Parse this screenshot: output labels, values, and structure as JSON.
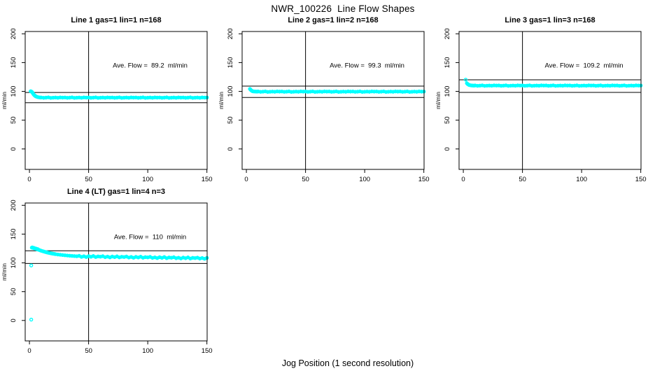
{
  "figure": {
    "title": "NWR_100226  Line Flow Shapes",
    "xlabel": "Jog Position (1 second resolution)",
    "point_color": "#00ffff",
    "axis_color": "#000000",
    "background": "#ffffff"
  },
  "chart_data": [
    {
      "type": "scatter",
      "title": "Line 1 gas=1 lin=1 n=168",
      "annotation": "Ave. Flow =  89.2  ml/min",
      "ave_flow": 89.2,
      "ylabel": "ml/min",
      "x_ticks": [
        0,
        50,
        100,
        150
      ],
      "y_ticks": [
        0,
        50,
        100,
        150,
        200
      ],
      "xlim": [
        -3.6,
        150.2
      ],
      "ylim": [
        -35.5,
        204
      ],
      "vline_x": 50,
      "hlines": [
        98.1,
        80.3
      ],
      "annotation_pos": [
        102,
        145
      ],
      "points": [
        [
          1,
          100.2
        ],
        [
          1.5,
          99.9
        ],
        [
          2,
          99.2
        ],
        [
          2.5,
          98.0
        ],
        [
          3,
          96.3
        ],
        [
          3.5,
          94.9
        ],
        [
          4,
          93.7
        ],
        [
          4.5,
          92.7
        ],
        [
          5,
          91.9
        ],
        [
          5.5,
          91.3
        ],
        [
          6,
          90.8
        ],
        [
          7,
          90.1
        ],
        [
          8,
          89.7
        ],
        [
          9,
          89.4
        ],
        [
          10,
          89.4
        ],
        [
          12,
          88.8
        ],
        [
          14,
          89.1
        ],
        [
          16,
          89.6
        ],
        [
          18,
          88.7
        ],
        [
          20,
          89.0
        ],
        [
          22,
          89.3
        ],
        [
          24,
          88.9
        ],
        [
          26,
          89.5
        ],
        [
          28,
          89.2
        ],
        [
          30,
          89.4
        ],
        [
          32,
          88.8
        ],
        [
          34,
          89.1
        ],
        [
          36,
          89.6
        ],
        [
          38,
          88.7
        ],
        [
          40,
          89.0
        ],
        [
          42,
          89.3
        ],
        [
          44,
          88.9
        ],
        [
          46,
          89.5
        ],
        [
          48,
          89.2
        ],
        [
          50,
          89.4
        ],
        [
          52,
          88.8
        ],
        [
          54,
          89.1
        ],
        [
          56,
          89.6
        ],
        [
          58,
          88.7
        ],
        [
          60,
          89.0
        ],
        [
          62,
          89.3
        ],
        [
          64,
          88.9
        ],
        [
          66,
          89.5
        ],
        [
          68,
          89.2
        ],
        [
          70,
          89.4
        ],
        [
          72,
          88.8
        ],
        [
          74,
          89.1
        ],
        [
          76,
          89.6
        ],
        [
          78,
          88.7
        ],
        [
          80,
          89.0
        ],
        [
          82,
          89.3
        ],
        [
          84,
          88.9
        ],
        [
          86,
          89.5
        ],
        [
          88,
          89.2
        ],
        [
          90,
          89.4
        ],
        [
          92,
          88.8
        ],
        [
          94,
          89.1
        ],
        [
          96,
          89.6
        ],
        [
          98,
          88.7
        ],
        [
          100,
          89.0
        ],
        [
          102,
          89.3
        ],
        [
          104,
          88.9
        ],
        [
          106,
          89.5
        ],
        [
          108,
          89.2
        ],
        [
          110,
          89.4
        ],
        [
          112,
          88.8
        ],
        [
          114,
          89.1
        ],
        [
          116,
          89.6
        ],
        [
          118,
          88.7
        ],
        [
          120,
          89.0
        ],
        [
          122,
          89.3
        ],
        [
          124,
          88.9
        ],
        [
          126,
          89.5
        ],
        [
          128,
          89.2
        ],
        [
          130,
          89.4
        ],
        [
          132,
          88.8
        ],
        [
          134,
          89.1
        ],
        [
          136,
          89.6
        ],
        [
          138,
          88.7
        ],
        [
          140,
          89.0
        ],
        [
          142,
          89.3
        ],
        [
          144,
          88.9
        ],
        [
          146,
          89.5
        ],
        [
          148,
          89.2
        ],
        [
          150,
          89.3
        ]
      ]
    },
    {
      "type": "scatter",
      "title": "Line 2 gas=1 lin=2 n=168",
      "annotation": "Ave. Flow =  99.3  ml/min",
      "ave_flow": 99.3,
      "ylabel": "ml/min",
      "x_ticks": [
        0,
        50,
        100,
        150
      ],
      "y_ticks": [
        0,
        50,
        100,
        150,
        200
      ],
      "xlim": [
        -3.6,
        150.2
      ],
      "ylim": [
        -35.5,
        204
      ],
      "vline_x": 50,
      "hlines": [
        109.2,
        89.4
      ],
      "annotation_pos": [
        102,
        145
      ],
      "points": [
        [
          3,
          104.2
        ],
        [
          3.5,
          103.1
        ],
        [
          4,
          102.0
        ],
        [
          4.5,
          101.1
        ],
        [
          5,
          100.5
        ],
        [
          5.5,
          100.2
        ],
        [
          6,
          100.0
        ],
        [
          7,
          99.8
        ],
        [
          8,
          99.7
        ],
        [
          9,
          99.6
        ],
        [
          10,
          99.8
        ],
        [
          12,
          99.2
        ],
        [
          14,
          99.5
        ],
        [
          16,
          100.0
        ],
        [
          18,
          99.1
        ],
        [
          20,
          99.4
        ],
        [
          22,
          99.7
        ],
        [
          24,
          99.3
        ],
        [
          26,
          99.9
        ],
        [
          28,
          99.6
        ],
        [
          30,
          99.8
        ],
        [
          32,
          99.2
        ],
        [
          34,
          99.5
        ],
        [
          36,
          100.0
        ],
        [
          38,
          99.1
        ],
        [
          40,
          99.4
        ],
        [
          42,
          99.7
        ],
        [
          44,
          99.3
        ],
        [
          46,
          99.9
        ],
        [
          48,
          99.6
        ],
        [
          50,
          99.8
        ],
        [
          52,
          99.2
        ],
        [
          54,
          99.5
        ],
        [
          56,
          100.0
        ],
        [
          58,
          99.1
        ],
        [
          60,
          99.4
        ],
        [
          62,
          99.7
        ],
        [
          64,
          99.3
        ],
        [
          66,
          99.9
        ],
        [
          68,
          99.6
        ],
        [
          70,
          99.8
        ],
        [
          72,
          99.2
        ],
        [
          74,
          99.5
        ],
        [
          76,
          100.0
        ],
        [
          78,
          99.1
        ],
        [
          80,
          99.4
        ],
        [
          82,
          99.7
        ],
        [
          84,
          99.3
        ],
        [
          86,
          99.9
        ],
        [
          88,
          99.6
        ],
        [
          90,
          99.8
        ],
        [
          92,
          99.2
        ],
        [
          94,
          99.5
        ],
        [
          96,
          100.0
        ],
        [
          98,
          99.1
        ],
        [
          100,
          99.4
        ],
        [
          102,
          99.7
        ],
        [
          104,
          99.3
        ],
        [
          106,
          99.9
        ],
        [
          108,
          99.6
        ],
        [
          110,
          99.8
        ],
        [
          112,
          99.2
        ],
        [
          114,
          99.5
        ],
        [
          116,
          100.0
        ],
        [
          118,
          99.1
        ],
        [
          120,
          99.4
        ],
        [
          122,
          99.7
        ],
        [
          124,
          99.3
        ],
        [
          126,
          99.9
        ],
        [
          128,
          99.6
        ],
        [
          130,
          99.8
        ],
        [
          132,
          99.2
        ],
        [
          134,
          99.5
        ],
        [
          136,
          100.0
        ],
        [
          138,
          99.1
        ],
        [
          140,
          99.4
        ],
        [
          142,
          99.7
        ],
        [
          144,
          99.3
        ],
        [
          146,
          99.9
        ],
        [
          148,
          99.6
        ],
        [
          150,
          99.7
        ]
      ]
    },
    {
      "type": "scatter",
      "title": "Line 3 gas=1 lin=3 n=168",
      "annotation": "Ave. Flow =  109.2  ml/min",
      "ave_flow": 109.2,
      "ylabel": "ml/min",
      "x_ticks": [
        0,
        50,
        100,
        150
      ],
      "y_ticks": [
        0,
        50,
        100,
        150,
        200
      ],
      "xlim": [
        -3.6,
        150.2
      ],
      "ylim": [
        -35.5,
        204
      ],
      "vline_x": 50,
      "hlines": [
        120.1,
        98.3
      ],
      "annotation_pos": [
        102,
        145
      ],
      "points": [
        [
          2,
          120.4,
          1
        ],
        [
          3,
          114.2
        ],
        [
          3.5,
          113.0
        ],
        [
          4,
          112.2
        ],
        [
          4.5,
          111.6
        ],
        [
          5,
          111.1
        ],
        [
          6,
          110.6
        ],
        [
          7,
          110.3
        ],
        [
          8,
          110.1
        ],
        [
          9,
          110.0
        ],
        [
          10,
          110.3
        ],
        [
          12,
          109.7
        ],
        [
          14,
          110.0
        ],
        [
          16,
          110.5
        ],
        [
          18,
          109.6
        ],
        [
          20,
          109.9
        ],
        [
          22,
          110.2
        ],
        [
          24,
          109.8
        ],
        [
          26,
          110.4
        ],
        [
          28,
          110.1
        ],
        [
          30,
          110.3
        ],
        [
          32,
          109.7
        ],
        [
          34,
          110.0
        ],
        [
          36,
          110.5
        ],
        [
          38,
          109.6
        ],
        [
          40,
          109.9
        ],
        [
          42,
          110.2
        ],
        [
          44,
          109.8
        ],
        [
          46,
          110.4
        ],
        [
          48,
          110.1
        ],
        [
          50,
          110.3
        ],
        [
          52,
          109.7
        ],
        [
          54,
          110.0
        ],
        [
          56,
          110.5
        ],
        [
          58,
          109.6
        ],
        [
          60,
          109.9
        ],
        [
          62,
          110.2
        ],
        [
          64,
          109.8
        ],
        [
          66,
          110.4
        ],
        [
          68,
          110.1
        ],
        [
          70,
          110.3
        ],
        [
          72,
          109.7
        ],
        [
          74,
          110.0
        ],
        [
          76,
          110.5
        ],
        [
          78,
          109.6
        ],
        [
          80,
          109.9
        ],
        [
          82,
          110.2
        ],
        [
          84,
          109.8
        ],
        [
          86,
          110.4
        ],
        [
          88,
          110.1
        ],
        [
          90,
          110.3
        ],
        [
          92,
          109.7
        ],
        [
          94,
          110.0
        ],
        [
          96,
          110.5
        ],
        [
          98,
          109.6
        ],
        [
          100,
          109.9
        ],
        [
          102,
          110.2
        ],
        [
          104,
          109.8
        ],
        [
          106,
          110.4
        ],
        [
          108,
          110.1
        ],
        [
          110,
          110.3
        ],
        [
          112,
          109.7
        ],
        [
          114,
          110.0
        ],
        [
          116,
          110.5
        ],
        [
          118,
          109.6
        ],
        [
          120,
          109.9
        ],
        [
          122,
          110.2
        ],
        [
          124,
          109.8
        ],
        [
          126,
          110.4
        ],
        [
          128,
          110.1
        ],
        [
          130,
          110.3
        ],
        [
          132,
          109.7
        ],
        [
          134,
          110.0
        ],
        [
          136,
          110.5
        ],
        [
          138,
          109.6
        ],
        [
          140,
          109.9
        ],
        [
          142,
          110.2
        ],
        [
          144,
          109.8
        ],
        [
          146,
          110.4
        ],
        [
          148,
          110.1
        ],
        [
          150,
          110.2
        ]
      ]
    },
    {
      "type": "scatter",
      "title": "Line 4 (LT) gas=1 lin=4 n=3",
      "annotation": "Ave. Flow =  110  ml/min",
      "ave_flow": 110,
      "ylabel": "ml/min",
      "x_ticks": [
        0,
        50,
        100,
        150
      ],
      "y_ticks": [
        0,
        50,
        100,
        150,
        200
      ],
      "xlim": [
        -3.6,
        150.2
      ],
      "ylim": [
        -35.5,
        204
      ],
      "vline_x": 50,
      "hlines": [
        121,
        99
      ],
      "annotation_pos": [
        102,
        145
      ],
      "points": [
        [
          1.5,
          1.5,
          1
        ],
        [
          1.5,
          95.5,
          1
        ],
        [
          2,
          126.5
        ],
        [
          2.5,
          126.8
        ],
        [
          3,
          126.2
        ],
        [
          3.5,
          125.6
        ],
        [
          4,
          125.9
        ],
        [
          4.5,
          125.1
        ],
        [
          5,
          124.6
        ],
        [
          5.5,
          124.9
        ],
        [
          6,
          124.1
        ],
        [
          6.5,
          123.6
        ],
        [
          7,
          123.9
        ],
        [
          7.5,
          123.1
        ],
        [
          8,
          122.6
        ],
        [
          9,
          121.8
        ],
        [
          10,
          121.1
        ],
        [
          11,
          120.4
        ],
        [
          12,
          119.8
        ],
        [
          13,
          119.2
        ],
        [
          14,
          118.6
        ],
        [
          15,
          118.1
        ],
        [
          16,
          117.6
        ],
        [
          17,
          117.1
        ],
        [
          18,
          116.7
        ],
        [
          19,
          116.3
        ],
        [
          20,
          115.9
        ],
        [
          21,
          115.6
        ],
        [
          22,
          115.2
        ],
        [
          24,
          114.6
        ],
        [
          26,
          114.1
        ],
        [
          28,
          113.6
        ],
        [
          30,
          113.2
        ],
        [
          32,
          112.8
        ],
        [
          34,
          112.4
        ],
        [
          36,
          112.1
        ],
        [
          38,
          111.8
        ],
        [
          40,
          111.5
        ],
        [
          42,
          112.2
        ],
        [
          44,
          110.5
        ],
        [
          46,
          111.5
        ],
        [
          48,
          110.1
        ],
        [
          50,
          111.7
        ],
        [
          52,
          110.6
        ],
        [
          54,
          111.9
        ],
        [
          56,
          110.1
        ],
        [
          58,
          111.2
        ],
        [
          60,
          110.8
        ],
        [
          62,
          111.6
        ],
        [
          64,
          109.9
        ],
        [
          66,
          110.9
        ],
        [
          68,
          109.5
        ],
        [
          70,
          111.0
        ],
        [
          72,
          110.0
        ],
        [
          74,
          111.3
        ],
        [
          76,
          109.5
        ],
        [
          78,
          110.6
        ],
        [
          80,
          110.1
        ],
        [
          82,
          111.0
        ],
        [
          84,
          109.3
        ],
        [
          86,
          110.3
        ],
        [
          88,
          108.9
        ],
        [
          90,
          110.4
        ],
        [
          92,
          109.4
        ],
        [
          94,
          110.7
        ],
        [
          96,
          108.9
        ],
        [
          98,
          110.0
        ],
        [
          100,
          109.5
        ],
        [
          102,
          110.4
        ],
        [
          104,
          108.7
        ],
        [
          106,
          109.6
        ],
        [
          108,
          108.3
        ],
        [
          110,
          109.8
        ],
        [
          112,
          108.8
        ],
        [
          114,
          110.1
        ],
        [
          116,
          108.2
        ],
        [
          118,
          109.4
        ],
        [
          120,
          108.9
        ],
        [
          122,
          109.8
        ],
        [
          124,
          108.1
        ],
        [
          126,
          109.0
        ],
        [
          128,
          107.7
        ],
        [
          130,
          109.2
        ],
        [
          132,
          108.1
        ],
        [
          134,
          109.5
        ],
        [
          136,
          107.6
        ],
        [
          138,
          108.8
        ],
        [
          140,
          108.3
        ],
        [
          142,
          109.1
        ],
        [
          144,
          107.5
        ],
        [
          146,
          108.4
        ],
        [
          148,
          107.1
        ],
        [
          150,
          108.6
        ]
      ]
    }
  ]
}
